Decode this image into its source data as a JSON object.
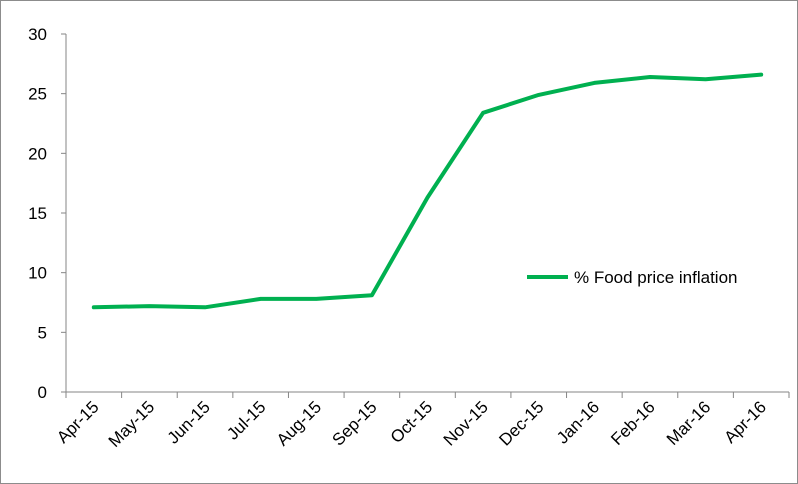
{
  "chart_data": {
    "type": "line",
    "categories": [
      "Apr-15",
      "May-15",
      "Jun-15",
      "Jul-15",
      "Aug-15",
      "Sep-15",
      "Oct-15",
      "Nov-15",
      "Dec-15",
      "Jan-16",
      "Feb-16",
      "Mar-16",
      "Apr-16"
    ],
    "series": [
      {
        "name": "% Food price inflation",
        "color": "#00b050",
        "values": [
          7.1,
          7.2,
          7.1,
          7.8,
          7.8,
          8.1,
          16.3,
          23.4,
          24.9,
          25.9,
          26.4,
          26.2,
          26.6
        ]
      }
    ],
    "ylim": [
      0,
      30
    ],
    "yticks": [
      0,
      5,
      10,
      15,
      20,
      25,
      30
    ],
    "grid": false,
    "legend_position": "right"
  }
}
